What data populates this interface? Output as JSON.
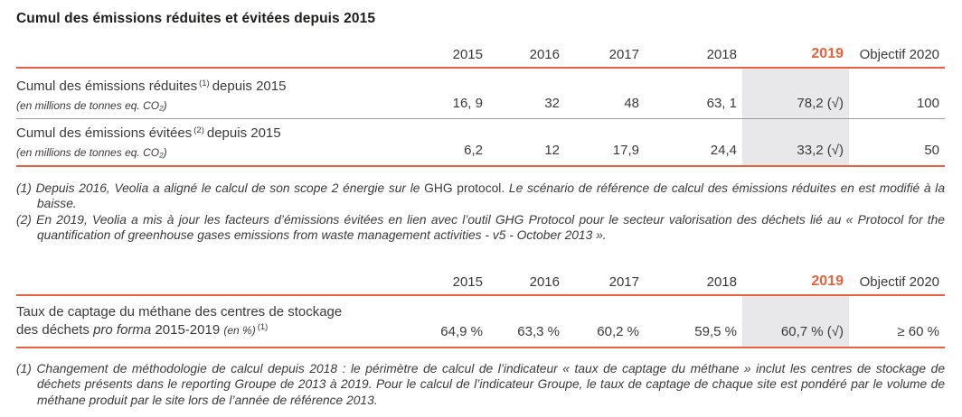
{
  "page": {
    "title": "Cumul des émissions réduites et évitées depuis 2015"
  },
  "colors": {
    "accent_orange": "#e8613c",
    "highlight_gray": "#e8e7ea",
    "text": "#3a3a39"
  },
  "emissions_table": {
    "headers": [
      "2015",
      "2016",
      "2017",
      "2018",
      "2019",
      "Objectif 2020"
    ],
    "rows": [
      {
        "label": "Cumul des émissions réduites",
        "label_sup": "(1)",
        "label_suffix": "depuis 2015",
        "sublabel": "(en millions de tonnes eq. CO₂)",
        "values": [
          "16, 9",
          "32",
          "48",
          "63, 1",
          "78,2 (√)",
          "100"
        ]
      },
      {
        "label": "Cumul des émissions évitées",
        "label_sup": "(2)",
        "label_suffix": "depuis 2015",
        "sublabel": "(en millions de tonnes eq. CO₂)",
        "values": [
          "6,2",
          "12",
          "17,9",
          "24,4",
          "33,2 (√)",
          "50"
        ]
      }
    ]
  },
  "emissions_footnotes": {
    "fn1": {
      "marker": "(1)",
      "italic_part1": "Depuis 2016, Veolia a aligné le calcul de son scope 2 énergie sur le ",
      "upright_part": "GHG protocol.",
      "italic_part2": " Le scénario de référence de calcul des émissions réduites en est modifié à la baisse."
    },
    "fn2": {
      "marker": "(2)",
      "text": "En 2019, Veolia a mis à jour les facteurs d’émissions évitées en lien avec l’outil GHG Protocol pour le secteur valorisation des déchets lié au « Protocol for the quantification of greenhouse gases emissions from waste management activities - v5 - October 2013 »."
    }
  },
  "methane_table": {
    "headers": [
      "2015",
      "2016",
      "2017",
      "2018",
      "2019",
      "Objectif 2020"
    ],
    "row": {
      "label_line1": "Taux de captage du méthane des centres de stockage",
      "label_line2_part1": "des déchets ",
      "label_line2_italic": "pro forma",
      "label_line2_part2": " 2015-2019 ",
      "label_line2_unit": "(en %)",
      "label_sup": "(1)",
      "values": [
        "64,9 %",
        "63,3 %",
        "60,2 %",
        "59,5 %",
        "60,7 % (√)",
        "≥ 60 %"
      ]
    }
  },
  "methane_footnote": {
    "marker": "(1)",
    "text": "Changement de méthodologie de calcul depuis 2018 : le périmètre de calcul de l’indicateur « taux de captage du méthane » inclut les centres de stockage de déchets présents dans le reporting Groupe de 2013 à 2019. Pour le calcul de l’indicateur Groupe, le taux de captage de chaque site est pondéré par le volume de méthane produit par le site lors de l’année de référence 2013."
  }
}
